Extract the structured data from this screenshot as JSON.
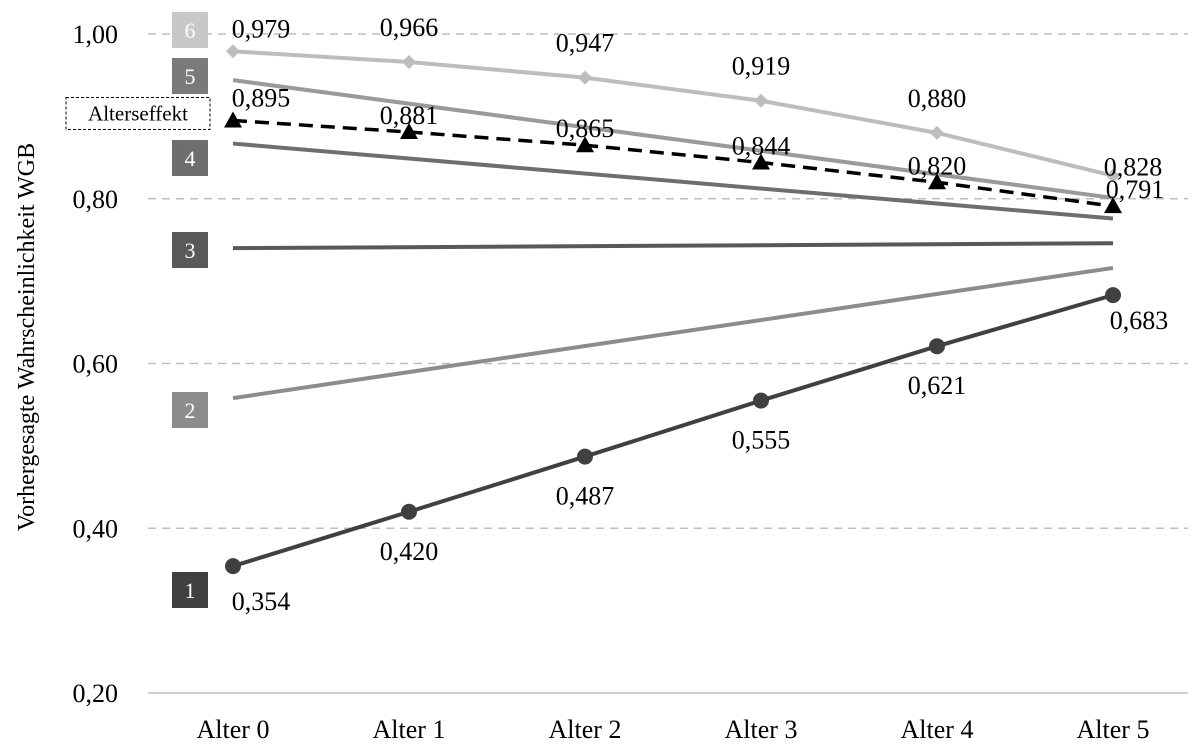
{
  "chart_data": {
    "type": "line",
    "title": "",
    "xlabel": "",
    "ylabel": "Vorhergesagte Wahrscheinlichkeit WGB",
    "categories": [
      "Alter 0",
      "Alter 1",
      "Alter 2",
      "Alter 3",
      "Alter 4",
      "Alter 5"
    ],
    "ylim": [
      0.2,
      1.0
    ],
    "yticks": [
      "0,20",
      "0,40",
      "0,60",
      "0,80",
      "1,00"
    ],
    "ytick_values": [
      0.2,
      0.4,
      0.6,
      0.8,
      1.0
    ],
    "grid": "horizontal dashed",
    "series": [
      {
        "name": "1",
        "values": [
          0.354,
          0.42,
          0.487,
          0.555,
          0.621,
          0.683
        ],
        "labels": [
          "0,354",
          "0,420",
          "0,487",
          "0,555",
          "0,621",
          "0,683"
        ],
        "color": "#404040",
        "marker": "circle",
        "dash": false
      },
      {
        "name": "2",
        "values": [
          0.558,
          null,
          null,
          null,
          null,
          0.716
        ],
        "labels": [],
        "color": "#8c8c8c",
        "marker": "none",
        "dash": false
      },
      {
        "name": "3",
        "values": [
          0.74,
          null,
          null,
          null,
          null,
          0.746
        ],
        "labels": [],
        "color": "#595959",
        "marker": "none",
        "dash": false
      },
      {
        "name": "4",
        "values": [
          0.867,
          null,
          null,
          null,
          null,
          0.776
        ],
        "labels": [],
        "color": "#6e6e6e",
        "marker": "none",
        "dash": false
      },
      {
        "name": "5",
        "values": [
          0.944,
          null,
          null,
          null,
          null,
          0.801
        ],
        "labels": [],
        "color": "#9a9a9a",
        "marker": "none",
        "dash": false
      },
      {
        "name": "6",
        "values": [
          0.979,
          0.966,
          0.947,
          0.919,
          0.88,
          0.828
        ],
        "labels": [
          "0,979",
          "0,966",
          "0,947",
          "0,919",
          "0,880",
          "0,828"
        ],
        "color": "#bdbdbd",
        "marker": "diamond",
        "dash": false
      },
      {
        "name": "Alterseffekt",
        "values": [
          0.895,
          0.881,
          0.865,
          0.844,
          0.82,
          0.791
        ],
        "labels": [
          "0,895",
          "0,881",
          "0,865",
          "0,844",
          "0,820",
          "0,791"
        ],
        "color": "#000000",
        "marker": "triangle",
        "dash": true
      }
    ],
    "series_labels": [
      {
        "series": "1",
        "text": "1",
        "fill": "#404040"
      },
      {
        "series": "2",
        "text": "2",
        "fill": "#8c8c8c"
      },
      {
        "series": "3",
        "text": "3",
        "fill": "#595959"
      },
      {
        "series": "4",
        "text": "4",
        "fill": "#6e6e6e"
      },
      {
        "series": "5",
        "text": "5",
        "fill": "#7a7a7a"
      },
      {
        "series": "6",
        "text": "6",
        "fill": "#c8c8c8"
      },
      {
        "series": "Alterseffekt",
        "text": "Alterseffekt",
        "fill": "#ffffff"
      }
    ]
  }
}
